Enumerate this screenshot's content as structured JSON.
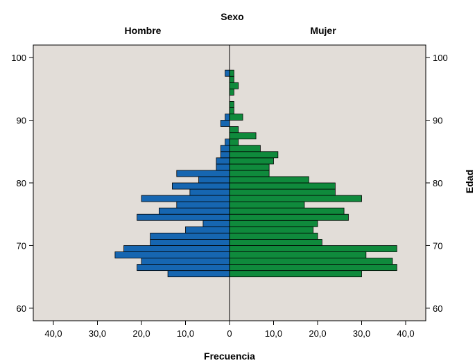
{
  "chart_data": {
    "type": "bar",
    "orientation": "horizontal",
    "title": "Sexo",
    "xlabel": "Frecuencia",
    "ylabel": "Edad",
    "xlim": [
      -40,
      40
    ],
    "ylim": [
      58,
      102
    ],
    "xticks": [
      "40,0",
      "30,0",
      "20,0",
      "10,0",
      "0",
      "10,0",
      "20,0",
      "30,0",
      "40,0"
    ],
    "xtick_values": [
      -40,
      -30,
      -20,
      -10,
      0,
      10,
      20,
      30,
      40
    ],
    "yticks": [
      "60",
      "70",
      "80",
      "90",
      "100"
    ],
    "ytick_values": [
      60,
      70,
      80,
      90,
      100
    ],
    "background": "#e2ddd8",
    "series": [
      {
        "name": "Hombre",
        "color": "#1666b1",
        "side": "left",
        "ages": [
          65,
          66,
          67,
          68,
          69,
          70,
          71,
          72,
          73,
          74,
          75,
          76,
          77,
          78,
          79,
          80,
          81,
          82,
          83,
          84,
          85,
          86,
          87,
          88,
          89,
          90,
          91,
          92,
          93,
          94,
          95,
          96,
          97
        ],
        "values": [
          14,
          21,
          20,
          26,
          24,
          18,
          18,
          10,
          6,
          21,
          16,
          12,
          20,
          9,
          13,
          7,
          12,
          3,
          3,
          2,
          2,
          1,
          0,
          0,
          2,
          1,
          0,
          0,
          0,
          0,
          0,
          0,
          1
        ]
      },
      {
        "name": "Mujer",
        "color": "#0f8a3c",
        "side": "right",
        "ages": [
          65,
          66,
          67,
          68,
          69,
          70,
          71,
          72,
          73,
          74,
          75,
          76,
          77,
          78,
          79,
          80,
          81,
          82,
          83,
          84,
          85,
          86,
          87,
          88,
          89,
          90,
          91,
          92,
          93,
          94,
          95,
          96,
          97
        ],
        "values": [
          30,
          38,
          37,
          31,
          38,
          21,
          20,
          19,
          20,
          27,
          26,
          17,
          30,
          24,
          24,
          18,
          9,
          9,
          10,
          11,
          7,
          2,
          6,
          2,
          0,
          3,
          1,
          1,
          0,
          1,
          2,
          1,
          1
        ]
      }
    ]
  }
}
